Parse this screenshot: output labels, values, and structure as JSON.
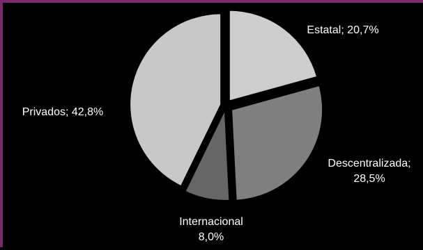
{
  "colors": {
    "background": "#000000",
    "frame": "#7a2a6a",
    "label": "#ffffff"
  },
  "chart_data": {
    "type": "pie",
    "title": "",
    "slices": [
      {
        "label_lines": [
          "Estatal; 20,7%"
        ],
        "value": 20.7,
        "color": "#cdcdcd"
      },
      {
        "label_lines": [
          "Descentralizada;",
          "28,5%"
        ],
        "value": 28.5,
        "color": "#7f7f7f"
      },
      {
        "label_lines": [
          "Internacional",
          "8,0%"
        ],
        "value": 8.0,
        "color": "#666666"
      },
      {
        "label_lines": [
          "Privados; 42,8%"
        ],
        "value": 42.8,
        "color": "#c8c8c8"
      }
    ]
  }
}
